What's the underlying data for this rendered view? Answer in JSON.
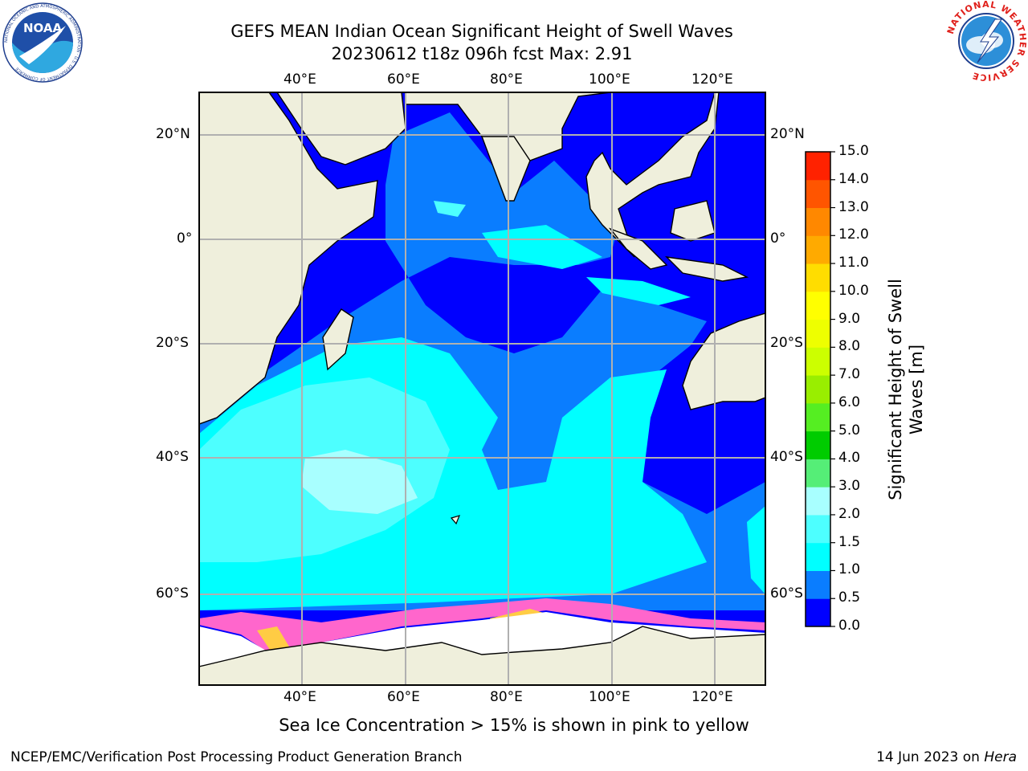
{
  "header": {
    "title_line1": "GEFS MEAN Indian Ocean Significant Height of Swell Waves",
    "title_line2": "20230612 t18z 096h fcst   Max: 2.91"
  },
  "logos": {
    "left": {
      "icon": "noaa-logo-icon",
      "text": "NOAA",
      "ring_text": "NATIONAL OCEANIC AND ATMOSPHERIC ADMINISTRATION · U.S. DEPARTMENT OF COMMERCE"
    },
    "right": {
      "icon": "nws-logo-icon",
      "ring_text": "NATIONAL WEATHER SERVICE"
    }
  },
  "map": {
    "lon_labels_top": [
      "40°E",
      "60°E",
      "80°E",
      "100°E",
      "120°E"
    ],
    "lon_labels_bottom": [
      "40°E",
      "60°E",
      "80°E",
      "100°E",
      "120°E"
    ],
    "lat_labels_left": [
      "20°N",
      "0°",
      "20°S",
      "40°S",
      "60°S"
    ],
    "lat_labels_right": [
      "20°N",
      "0°",
      "20°S",
      "40°S",
      "60°S"
    ],
    "colors": {
      "land": "#efefdc",
      "coast": "#000000",
      "grid": "#b0b0b0",
      "ice_pink": "#ff66cc",
      "ice_yellow": "#ffcc44"
    }
  },
  "colorbar": {
    "label": "Significant Height of Swell Waves [m]",
    "ticks": [
      "0.0",
      "0.5",
      "1.0",
      "1.5",
      "2.0",
      "3.0",
      "4.0",
      "5.0",
      "6.0",
      "7.0",
      "8.0",
      "9.0",
      "10.0",
      "11.0",
      "12.0",
      "13.0",
      "14.0",
      "15.0"
    ],
    "colors": [
      "#0000ff",
      "#0a7dff",
      "#00ffff",
      "#4dffff",
      "#a8ffff",
      "#55ee77",
      "#00cc00",
      "#55ee22",
      "#99ee00",
      "#ccff00",
      "#eeff00",
      "#ffff00",
      "#ffdd00",
      "#ffaa00",
      "#ff8800",
      "#ff5500",
      "#ff2200"
    ]
  },
  "caption": "Sea Ice Concentration > 15% is shown in pink to yellow",
  "footer": {
    "left": "NCEP/EMC/Verification Post Processing Product Generation Branch",
    "right_prefix": "14 Jun 2023 on ",
    "right_host": "Hera"
  }
}
